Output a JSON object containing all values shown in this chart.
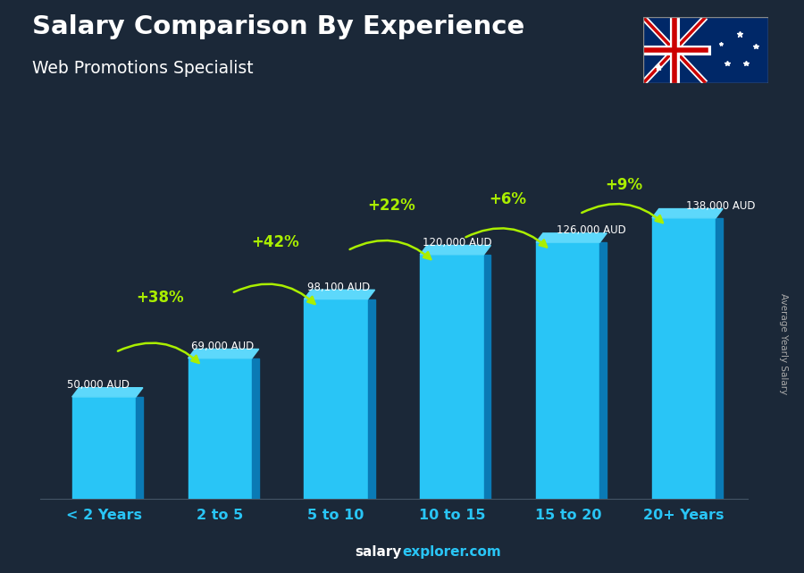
{
  "title": "Salary Comparison By Experience",
  "subtitle": "Web Promotions Specialist",
  "categories": [
    "< 2 Years",
    "2 to 5",
    "5 to 10",
    "10 to 15",
    "15 to 20",
    "20+ Years"
  ],
  "values": [
    50000,
    69000,
    98100,
    120000,
    126000,
    138000
  ],
  "value_labels": [
    "50,000 AUD",
    "69,000 AUD",
    "98,100 AUD",
    "120,000 AUD",
    "126,000 AUD",
    "138,000 AUD"
  ],
  "pct_labels": [
    "+38%",
    "+42%",
    "+22%",
    "+6%",
    "+9%"
  ],
  "bar_face_color": "#29c5f6",
  "bar_side_color": "#0a7ab5",
  "bar_top_color": "#5dd8fb",
  "background_color": "#1b2838",
  "title_color": "#ffffff",
  "subtitle_color": "#ffffff",
  "value_label_color": "#ffffff",
  "pct_color": "#aaee00",
  "xticklabel_color": "#29c5f6",
  "ylabel_text": "Average Yearly Salary",
  "ylabel_color": "#aaaaaa",
  "footer_salary_color": "#ffffff",
  "footer_explorer_color": "#29c5f6",
  "ylim": [
    0,
    155000
  ],
  "figsize": [
    9.0,
    6.41
  ],
  "dpi": 100
}
